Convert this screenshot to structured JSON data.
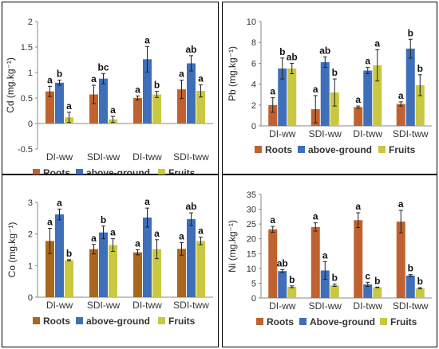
{
  "chart_data": [
    {
      "type": "bar",
      "ylabel": "Cd (mg.kg⁻¹)",
      "ylim": [
        -0.5,
        2
      ],
      "yticks": [
        "-0.5",
        "0",
        "0.5",
        "1",
        "1.5",
        "2"
      ],
      "ytick_values": [
        -0.5,
        0,
        0.5,
        1,
        1.5,
        2
      ],
      "categories": [
        "DI-ww",
        "SDI-ww",
        "DI-tww",
        "SDI-tww"
      ],
      "series": [
        {
          "name": "Roots",
          "color": "#c0622f",
          "values": [
            0.63,
            0.57,
            0.5,
            0.67
          ],
          "errors": [
            0.1,
            0.18,
            0.04,
            0.18
          ],
          "letters": [
            "a",
            "a",
            "a",
            "a"
          ]
        },
        {
          "name": "above-ground",
          "color": "#3f6fb8",
          "values": [
            0.8,
            0.88,
            1.26,
            1.18
          ],
          "errors": [
            0.05,
            0.1,
            0.25,
            0.15
          ],
          "letters": [
            "b",
            "bc",
            "a",
            "ab"
          ]
        },
        {
          "name": "Fruits",
          "color": "#c9c840",
          "values": [
            0.12,
            0.08,
            0.57,
            0.64
          ],
          "errors": [
            0.1,
            0.06,
            0.06,
            0.12
          ],
          "letters": [
            "a",
            "a",
            "b",
            "a"
          ]
        }
      ],
      "legend_position": "bottom",
      "grid": false
    },
    {
      "type": "bar",
      "ylabel": "Pb (mg.kg⁻¹)",
      "ylim": [
        0,
        10
      ],
      "yticks": [
        "0",
        "2",
        "4",
        "6",
        "8",
        "10"
      ],
      "ytick_values": [
        0,
        2,
        4,
        6,
        8,
        10
      ],
      "categories": [
        "DI-ww",
        "SDI-ww",
        "DI-tww",
        "SDI-tww"
      ],
      "series": [
        {
          "name": "Roots",
          "color": "#c0622f",
          "values": [
            2.0,
            1.6,
            1.8,
            2.1
          ],
          "errors": [
            0.7,
            1.3,
            0.1,
            0.2
          ],
          "letters": [
            "a",
            "a",
            "a",
            "a"
          ]
        },
        {
          "name": "above-ground",
          "color": "#3f6fb8",
          "values": [
            5.5,
            6.1,
            5.3,
            7.4
          ],
          "errors": [
            1.0,
            0.5,
            0.3,
            0.9
          ],
          "letters": [
            "b",
            "ab",
            "a",
            "b"
          ]
        },
        {
          "name": "Fruits",
          "color": "#c9c840",
          "values": [
            5.5,
            3.2,
            5.8,
            3.9
          ],
          "errors": [
            0.5,
            1.3,
            1.5,
            1.0
          ],
          "letters": [
            "ab",
            "b",
            "a",
            "b"
          ]
        }
      ],
      "legend_position": "bottom",
      "grid": false
    },
    {
      "type": "bar",
      "ylabel": "Co (mg.kg⁻¹)",
      "ylim": [
        0,
        3
      ],
      "yticks": [
        "0",
        "1",
        "2",
        "3"
      ],
      "ytick_values": [
        0,
        1,
        2,
        3
      ],
      "categories": [
        "DI-ww",
        "SDI-ww",
        "DI-tww",
        "SDI-tww"
      ],
      "series": [
        {
          "name": "Roots",
          "color": "#a9661f",
          "values": [
            1.78,
            1.52,
            1.42,
            1.53
          ],
          "errors": [
            0.4,
            0.15,
            0.08,
            0.2
          ],
          "letters": [
            "a",
            "a",
            "a",
            "a"
          ]
        },
        {
          "name": "above-ground",
          "color": "#3f6fb8",
          "values": [
            2.62,
            2.05,
            2.52,
            2.47
          ],
          "errors": [
            0.17,
            0.2,
            0.3,
            0.2
          ],
          "letters": [
            "a",
            "b",
            "a",
            "ab"
          ]
        },
        {
          "name": "Fruits",
          "color": "#c9c840",
          "values": [
            1.17,
            1.65,
            1.52,
            1.78
          ],
          "errors": [
            0.02,
            0.2,
            0.3,
            0.12
          ],
          "letters": [
            "b",
            "a",
            "a",
            "a"
          ]
        }
      ],
      "legend_position": "bottom",
      "grid": false
    },
    {
      "type": "bar",
      "ylabel": "Ni (mg.kg⁻¹)",
      "ylim": [
        0,
        35
      ],
      "yticks": [
        "0",
        "5",
        "10",
        "15",
        "20",
        "25",
        "30",
        "35"
      ],
      "ytick_values": [
        0,
        5,
        10,
        15,
        20,
        25,
        30,
        35
      ],
      "categories": [
        "DI-ww",
        "SDI-ww",
        "DI-tww",
        "SDI-tww"
      ],
      "series": [
        {
          "name": "Roots",
          "color": "#c0622f",
          "values": [
            23.2,
            24.0,
            26.3,
            25.8
          ],
          "errors": [
            1.0,
            1.4,
            2.5,
            3.8
          ],
          "letters": [
            "a",
            "a",
            "a",
            "a"
          ]
        },
        {
          "name": "Above-ground",
          "color": "#3f6fb8",
          "values": [
            9.1,
            9.3,
            4.6,
            7.6
          ],
          "errors": [
            0.5,
            3.0,
            0.7,
            0.3
          ],
          "letters": [
            "ab",
            "a",
            "c",
            "b"
          ]
        },
        {
          "name": "Fruits",
          "color": "#c9c840",
          "values": [
            3.8,
            4.3,
            3.6,
            3.3
          ],
          "errors": [
            0.3,
            0.4,
            0.1,
            0.2
          ],
          "letters": [
            "b",
            "b",
            "b",
            "b"
          ]
        }
      ],
      "legend_position": "bottom",
      "grid": false
    }
  ]
}
